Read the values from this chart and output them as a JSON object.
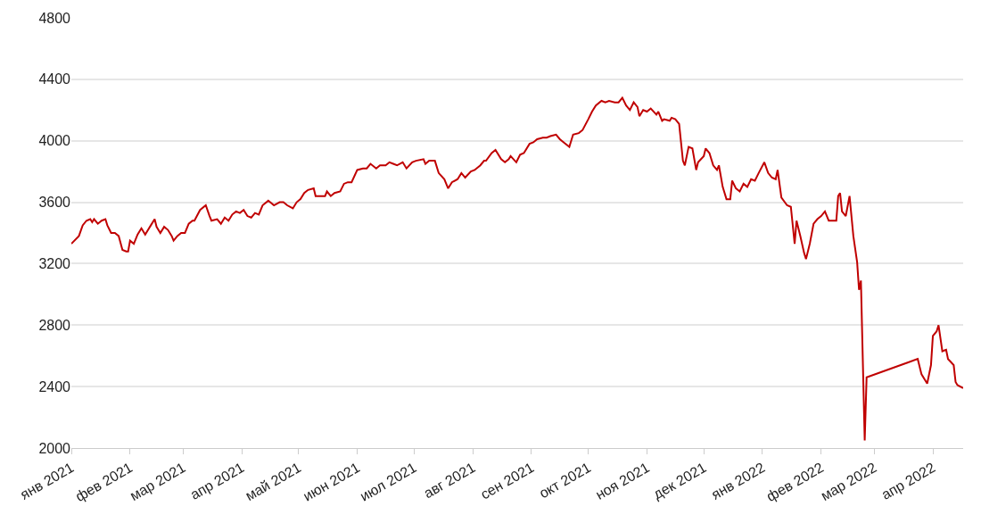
{
  "chart_data": {
    "type": "line",
    "color": "#c00000",
    "grid": "y",
    "marker": "none",
    "line_style": "solid",
    "ylim": [
      2000,
      4800
    ],
    "yticks": [
      2000,
      2400,
      2800,
      3200,
      3600,
      4000,
      4400,
      4800
    ],
    "xlim": [
      "2021-01-01",
      "2022-04-17"
    ],
    "xticks": [
      {
        "value": "2021-01-01",
        "label": "янв 2021"
      },
      {
        "value": "2021-02-01",
        "label": "фев 2021"
      },
      {
        "value": "2021-03-01",
        "label": "мар 2021"
      },
      {
        "value": "2021-04-01",
        "label": "апр 2021"
      },
      {
        "value": "2021-05-01",
        "label": "май 2021"
      },
      {
        "value": "2021-06-01",
        "label": "июн 2021"
      },
      {
        "value": "2021-07-01",
        "label": "июл 2021"
      },
      {
        "value": "2021-08-01",
        "label": "авг 2021"
      },
      {
        "value": "2021-09-01",
        "label": "сен 2021"
      },
      {
        "value": "2021-10-01",
        "label": "окт 2021"
      },
      {
        "value": "2021-11-01",
        "label": "ноя 2021"
      },
      {
        "value": "2021-12-01",
        "label": "дек 2021"
      },
      {
        "value": "2022-01-01",
        "label": "янв 2022"
      },
      {
        "value": "2022-02-01",
        "label": "фев 2022"
      },
      {
        "value": "2022-03-01",
        "label": "мар 2022"
      },
      {
        "value": "2022-04-01",
        "label": "апр 2022"
      }
    ],
    "x": [
      "2021-01-01",
      "2021-01-05",
      "2021-01-07",
      "2021-01-09",
      "2021-01-11",
      "2021-01-12",
      "2021-01-13",
      "2021-01-15",
      "2021-01-17",
      "2021-01-19",
      "2021-01-20",
      "2021-01-22",
      "2021-01-24",
      "2021-01-26",
      "2021-01-28",
      "2021-01-30",
      "2021-01-31",
      "2021-02-01",
      "2021-02-03",
      "2021-02-05",
      "2021-02-07",
      "2021-02-09",
      "2021-02-12",
      "2021-02-14",
      "2021-02-15",
      "2021-02-17",
      "2021-02-19",
      "2021-02-21",
      "2021-02-23",
      "2021-02-24",
      "2021-02-26",
      "2021-02-28",
      "2021-03-02",
      "2021-03-04",
      "2021-03-06",
      "2021-03-07",
      "2021-03-10",
      "2021-03-13",
      "2021-03-15",
      "2021-03-16",
      "2021-03-19",
      "2021-03-21",
      "2021-03-23",
      "2021-03-25",
      "2021-03-27",
      "2021-03-29",
      "2021-03-31",
      "2021-04-02",
      "2021-04-04",
      "2021-04-06",
      "2021-04-08",
      "2021-04-10",
      "2021-04-12",
      "2021-04-15",
      "2021-04-16",
      "2021-04-18",
      "2021-04-21",
      "2021-04-23",
      "2021-04-25",
      "2021-04-28",
      "2021-04-30",
      "2021-05-02",
      "2021-05-04",
      "2021-05-06",
      "2021-05-09",
      "2021-05-10",
      "2021-05-13",
      "2021-05-15",
      "2021-05-16",
      "2021-05-18",
      "2021-05-20",
      "2021-05-23",
      "2021-05-25",
      "2021-05-27",
      "2021-05-29",
      "2021-06-01",
      "2021-06-04",
      "2021-06-06",
      "2021-06-08",
      "2021-06-11",
      "2021-06-13",
      "2021-06-16",
      "2021-06-18",
      "2021-06-20",
      "2021-06-22",
      "2021-06-25",
      "2021-06-27",
      "2021-06-30",
      "2021-07-02",
      "2021-07-06",
      "2021-07-07",
      "2021-07-09",
      "2021-07-12",
      "2021-07-14",
      "2021-07-17",
      "2021-07-19",
      "2021-07-21",
      "2021-07-24",
      "2021-07-26",
      "2021-07-28",
      "2021-07-31",
      "2021-08-02",
      "2021-08-05",
      "2021-08-07",
      "2021-08-08",
      "2021-08-11",
      "2021-08-13",
      "2021-08-16",
      "2021-08-18",
      "2021-08-20",
      "2021-08-21",
      "2021-08-24",
      "2021-08-26",
      "2021-08-28",
      "2021-08-31",
      "2021-09-02",
      "2021-09-04",
      "2021-09-07",
      "2021-09-09",
      "2021-09-11",
      "2021-09-14",
      "2021-09-16",
      "2021-09-18",
      "2021-09-21",
      "2021-09-23",
      "2021-09-26",
      "2021-09-28",
      "2021-10-01",
      "2021-10-03",
      "2021-10-05",
      "2021-10-08",
      "2021-10-10",
      "2021-10-12",
      "2021-10-15",
      "2021-10-17",
      "2021-10-19",
      "2021-10-21",
      "2021-10-23",
      "2021-10-25",
      "2021-10-27",
      "2021-10-28",
      "2021-10-30",
      "2021-11-01",
      "2021-11-03",
      "2021-11-06",
      "2021-11-07",
      "2021-11-09",
      "2021-11-10",
      "2021-11-13",
      "2021-11-14",
      "2021-11-16",
      "2021-11-18",
      "2021-11-20",
      "2021-11-21",
      "2021-11-23",
      "2021-11-25",
      "2021-11-27",
      "2021-11-28",
      "2021-12-01",
      "2021-12-02",
      "2021-12-04",
      "2021-12-06",
      "2021-12-08",
      "2021-12-09",
      "2021-12-11",
      "2021-12-13",
      "2021-12-15",
      "2021-12-16",
      "2021-12-18",
      "2021-12-20",
      "2021-12-22",
      "2021-12-24",
      "2021-12-26",
      "2021-12-28",
      "2021-12-30",
      "2022-01-02",
      "2022-01-04",
      "2022-01-06",
      "2022-01-08",
      "2022-01-09",
      "2022-01-11",
      "2022-01-14",
      "2022-01-16",
      "2022-01-18",
      "2022-01-19",
      "2022-01-21",
      "2022-01-23",
      "2022-01-24",
      "2022-01-26",
      "2022-01-28",
      "2022-01-30",
      "2022-02-01",
      "2022-02-03",
      "2022-02-05",
      "2022-02-07",
      "2022-02-09",
      "2022-02-10",
      "2022-02-11",
      "2022-02-12",
      "2022-02-14",
      "2022-02-16",
      "2022-02-18",
      "2022-02-20",
      "2022-02-21",
      "2022-02-22",
      "2022-02-24",
      "2022-02-25",
      "2022-03-24",
      "2022-03-26",
      "2022-03-29",
      "2022-03-31",
      "2022-04-01",
      "2022-04-03",
      "2022-04-04",
      "2022-04-06",
      "2022-04-08",
      "2022-04-09",
      "2022-04-12",
      "2022-04-13",
      "2022-04-14",
      "2022-04-17"
    ],
    "values": [
      3330,
      3380,
      3450,
      3480,
      3490,
      3470,
      3490,
      3460,
      3480,
      3490,
      3450,
      3400,
      3400,
      3380,
      3290,
      3280,
      3280,
      3350,
      3330,
      3390,
      3430,
      3390,
      3450,
      3490,
      3440,
      3400,
      3440,
      3420,
      3380,
      3350,
      3380,
      3400,
      3400,
      3460,
      3480,
      3480,
      3550,
      3580,
      3510,
      3480,
      3490,
      3460,
      3500,
      3480,
      3520,
      3540,
      3530,
      3550,
      3510,
      3500,
      3530,
      3520,
      3580,
      3610,
      3600,
      3580,
      3600,
      3600,
      3580,
      3560,
      3600,
      3620,
      3660,
      3680,
      3690,
      3640,
      3640,
      3640,
      3670,
      3640,
      3660,
      3670,
      3720,
      3730,
      3730,
      3810,
      3820,
      3820,
      3850,
      3820,
      3840,
      3840,
      3860,
      3850,
      3840,
      3860,
      3820,
      3860,
      3870,
      3880,
      3850,
      3870,
      3870,
      3790,
      3750,
      3690,
      3730,
      3750,
      3790,
      3760,
      3800,
      3810,
      3840,
      3870,
      3870,
      3920,
      3940,
      3880,
      3860,
      3880,
      3900,
      3860,
      3910,
      3920,
      3980,
      3990,
      4010,
      4020,
      4020,
      4030,
      4040,
      4010,
      3990,
      3960,
      4040,
      4050,
      4070,
      4140,
      4190,
      4230,
      4260,
      4250,
      4260,
      4250,
      4250,
      4280,
      4230,
      4200,
      4250,
      4220,
      4160,
      4200,
      4190,
      4210,
      4170,
      4190,
      4130,
      4140,
      4130,
      4150,
      4140,
      4110,
      3870,
      3840,
      3960,
      3950,
      3810,
      3860,
      3900,
      3950,
      3920,
      3840,
      3810,
      3840,
      3700,
      3620,
      3620,
      3740,
      3690,
      3670,
      3720,
      3700,
      3750,
      3740,
      3790,
      3860,
      3790,
      3760,
      3750,
      3810,
      3630,
      3580,
      3570,
      3330,
      3480,
      3380,
      3270,
      3230,
      3330,
      3460,
      3490,
      3510,
      3540,
      3480,
      3480,
      3480,
      3640,
      3660,
      3540,
      3510,
      3640,
      3380,
      3210,
      3030,
      3090,
      2050,
      2460,
      2580,
      2480,
      2420,
      2540,
      2730,
      2760,
      2800,
      2630,
      2640,
      2580,
      2540,
      2430,
      2410,
      2390
    ]
  }
}
